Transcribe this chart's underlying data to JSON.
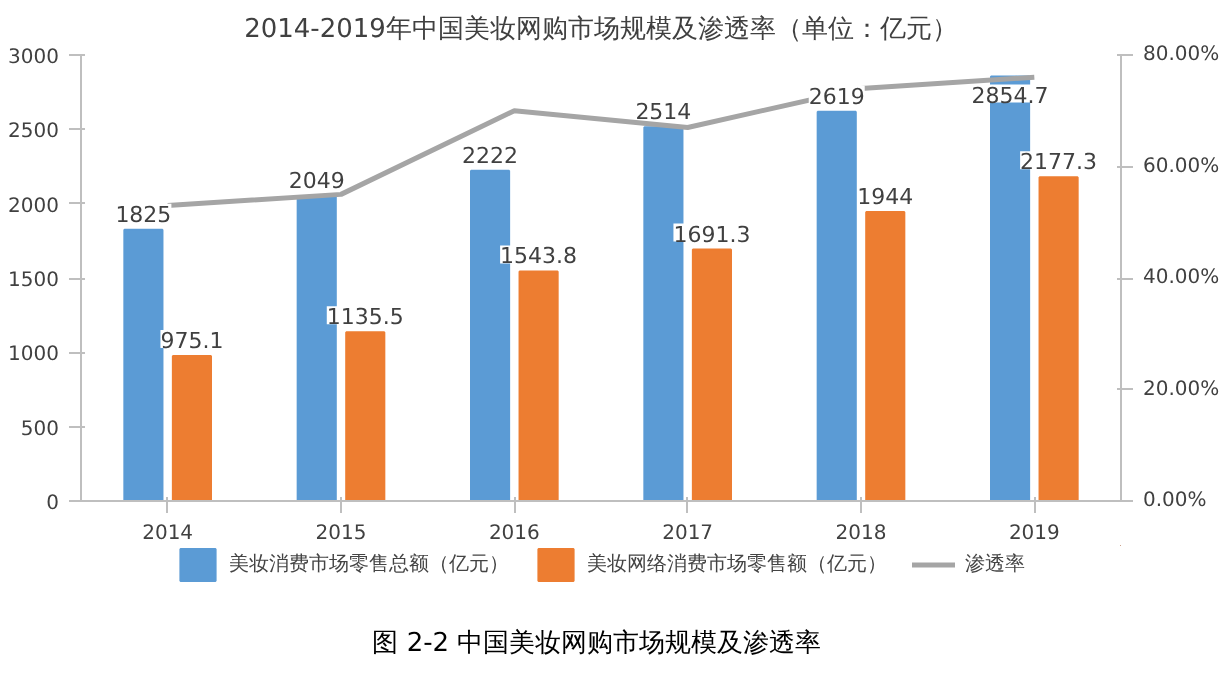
{
  "chart_data": {
    "type": "bar",
    "title": "2014-2019年中国美妆网购市场规模及渗透率（单位：亿元）",
    "categories": [
      "2014",
      "2015",
      "2016",
      "2017",
      "2018",
      "2019"
    ],
    "series": [
      {
        "name": "美妆消费市场零售总额（亿元）",
        "color": "#5b9bd5",
        "values": [
          1825,
          2049,
          2222,
          2514,
          2619,
          2854.7
        ]
      },
      {
        "name": "美妆网络消费市场零售额（亿元）",
        "color": "#ed7d31",
        "values": [
          975.1,
          1135.5,
          1543.8,
          1691.3,
          1944,
          2177.3
        ]
      },
      {
        "name": "渗透率",
        "type": "line",
        "axis": "y2",
        "color": "#a5a5a5",
        "values": [
          53,
          55,
          70,
          67,
          74,
          76
        ]
      }
    ],
    "ylim": [
      0,
      3000
    ],
    "yticks": [
      0,
      500,
      1000,
      1500,
      2000,
      2500,
      3000
    ],
    "y2lim": [
      0,
      80
    ],
    "y2ticks": [
      {
        "value": 0,
        "label": "0.00%"
      },
      {
        "value": 20,
        "label": "20.00%"
      },
      {
        "value": 40,
        "label": "40.00%"
      },
      {
        "value": 60,
        "label": "60.00%"
      },
      {
        "value": 80,
        "label": "80.00%"
      }
    ],
    "value_labels": [
      [
        "1825",
        "2049",
        "2222",
        "2514",
        "2619",
        "2854.7"
      ],
      [
        "975.1",
        "1135.5",
        "1543.8",
        "1691.3",
        "1944",
        "2177.3"
      ],
      null
    ],
    "legend": "bottom",
    "grid": false,
    "marker": "none",
    "line_style": "solid",
    "annotations": [
      "图 2-2  中国美妆网购市场规模及渗透率"
    ]
  }
}
